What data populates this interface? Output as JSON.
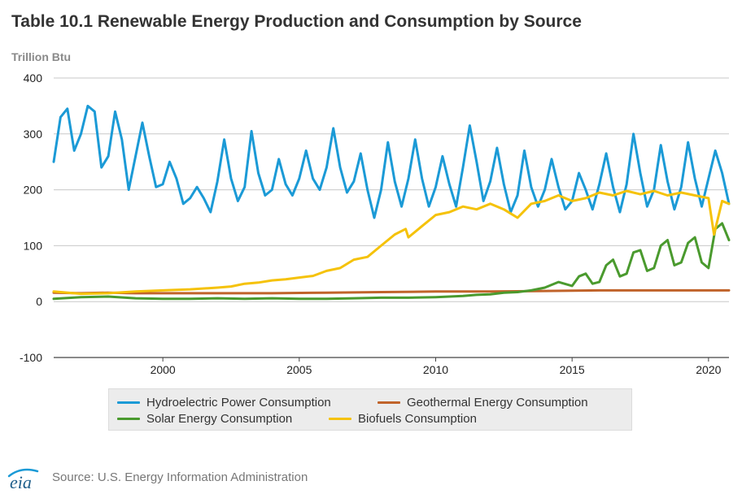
{
  "header": {
    "title": "Table 10.1 Renewable Energy Production and Consumption by Source",
    "units": "Trillion Btu"
  },
  "footer": {
    "logo_text": "eia",
    "source": "Source: U.S. Energy Information Administration"
  },
  "chart_data": {
    "type": "line",
    "title": "Table 10.1 Renewable Energy Production and Consumption by Source",
    "xlabel": "",
    "ylabel": "Trillion Btu",
    "xlim": [
      1996.0,
      2020.75
    ],
    "ylim": [
      -100,
      400
    ],
    "x_ticks": [
      2000,
      2005,
      2010,
      2015,
      2020
    ],
    "y_ticks": [
      -100,
      0,
      100,
      200,
      300,
      400
    ],
    "grid": "horizontal",
    "legend_position": "bottom",
    "series": [
      {
        "name": "Hydroelectric Power Consumption",
        "color": "#1b9ad6",
        "x": [
          1996.0,
          1996.25,
          1996.5,
          1996.75,
          1997.0,
          1997.25,
          1997.5,
          1997.75,
          1998.0,
          1998.25,
          1998.5,
          1998.75,
          1999.0,
          1999.25,
          1999.5,
          1999.75,
          2000.0,
          2000.25,
          2000.5,
          2000.75,
          2001.0,
          2001.25,
          2001.5,
          2001.75,
          2002.0,
          2002.25,
          2002.5,
          2002.75,
          2003.0,
          2003.25,
          2003.5,
          2003.75,
          2004.0,
          2004.25,
          2004.5,
          2004.75,
          2005.0,
          2005.25,
          2005.5,
          2005.75,
          2006.0,
          2006.25,
          2006.5,
          2006.75,
          2007.0,
          2007.25,
          2007.5,
          2007.75,
          2008.0,
          2008.25,
          2008.5,
          2008.75,
          2009.0,
          2009.25,
          2009.5,
          2009.75,
          2010.0,
          2010.25,
          2010.5,
          2010.75,
          2011.0,
          2011.25,
          2011.5,
          2011.75,
          2012.0,
          2012.25,
          2012.5,
          2012.75,
          2013.0,
          2013.25,
          2013.5,
          2013.75,
          2014.0,
          2014.25,
          2014.5,
          2014.75,
          2015.0,
          2015.25,
          2015.5,
          2015.75,
          2016.0,
          2016.25,
          2016.5,
          2016.75,
          2017.0,
          2017.25,
          2017.5,
          2017.75,
          2018.0,
          2018.25,
          2018.5,
          2018.75,
          2019.0,
          2019.25,
          2019.5,
          2019.75,
          2020.0,
          2020.25,
          2020.5,
          2020.75
        ],
        "values": [
          250,
          330,
          345,
          270,
          300,
          350,
          340,
          240,
          260,
          340,
          290,
          200,
          260,
          320,
          260,
          205,
          210,
          250,
          220,
          175,
          185,
          205,
          185,
          160,
          215,
          290,
          220,
          180,
          205,
          305,
          230,
          190,
          200,
          255,
          210,
          190,
          220,
          270,
          220,
          200,
          240,
          310,
          240,
          195,
          215,
          265,
          200,
          150,
          200,
          285,
          215,
          170,
          220,
          290,
          220,
          170,
          205,
          260,
          210,
          170,
          240,
          315,
          250,
          180,
          215,
          275,
          210,
          160,
          190,
          270,
          205,
          170,
          200,
          255,
          205,
          165,
          180,
          230,
          200,
          165,
          210,
          265,
          205,
          160,
          210,
          300,
          230,
          170,
          200,
          280,
          215,
          165,
          205,
          285,
          220,
          170,
          220,
          270,
          230,
          175
        ]
      },
      {
        "name": "Geothermal Energy Consumption",
        "color": "#c0632a",
        "x": [
          1996.0,
          1997.0,
          1998.0,
          1999.0,
          2000.0,
          2002.0,
          2004.0,
          2006.0,
          2008.0,
          2010.0,
          2012.0,
          2014.0,
          2016.0,
          2018.0,
          2020.0,
          2020.75
        ],
        "values": [
          16,
          15,
          16,
          15,
          15,
          15,
          15,
          16,
          17,
          18,
          18,
          19,
          20,
          20,
          20,
          20
        ]
      },
      {
        "name": "Solar Energy Consumption",
        "color": "#4a9a2e",
        "x": [
          1996.0,
          1997.0,
          1998.0,
          1999.0,
          2000.0,
          2001.0,
          2002.0,
          2003.0,
          2004.0,
          2005.0,
          2006.0,
          2007.0,
          2008.0,
          2009.0,
          2010.0,
          2011.0,
          2011.5,
          2012.0,
          2012.5,
          2013.0,
          2013.5,
          2014.0,
          2014.5,
          2015.0,
          2015.25,
          2015.5,
          2015.75,
          2016.0,
          2016.25,
          2016.5,
          2016.75,
          2017.0,
          2017.25,
          2017.5,
          2017.75,
          2018.0,
          2018.25,
          2018.5,
          2018.75,
          2019.0,
          2019.25,
          2019.5,
          2019.75,
          2020.0,
          2020.25,
          2020.5,
          2020.75
        ],
        "values": [
          5,
          8,
          9,
          6,
          5,
          5,
          6,
          5,
          6,
          5,
          5,
          6,
          7,
          7,
          8,
          10,
          12,
          13,
          16,
          17,
          20,
          25,
          35,
          28,
          45,
          50,
          32,
          35,
          65,
          75,
          45,
          50,
          88,
          92,
          55,
          60,
          100,
          110,
          65,
          70,
          105,
          115,
          70,
          60,
          130,
          140,
          110
        ]
      },
      {
        "name": "Biofuels Consumption",
        "color": "#f5c20a",
        "x": [
          1996.0,
          1997.0,
          1998.0,
          1999.0,
          2000.0,
          2001.0,
          2002.0,
          2002.5,
          2003.0,
          2003.5,
          2004.0,
          2004.5,
          2005.0,
          2005.5,
          2006.0,
          2006.5,
          2007.0,
          2007.5,
          2008.0,
          2008.5,
          2008.9,
          2009.0,
          2009.5,
          2010.0,
          2010.5,
          2011.0,
          2011.5,
          2012.0,
          2012.5,
          2013.0,
          2013.5,
          2014.0,
          2014.5,
          2015.0,
          2015.5,
          2016.0,
          2016.5,
          2017.0,
          2017.5,
          2018.0,
          2018.5,
          2019.0,
          2019.5,
          2020.0,
          2020.2,
          2020.35,
          2020.5,
          2020.75
        ],
        "values": [
          18,
          14,
          15,
          18,
          20,
          22,
          25,
          27,
          32,
          34,
          38,
          40,
          43,
          46,
          55,
          60,
          75,
          80,
          100,
          120,
          130,
          115,
          135,
          155,
          160,
          170,
          165,
          175,
          165,
          150,
          175,
          180,
          190,
          180,
          185,
          195,
          190,
          198,
          192,
          198,
          190,
          195,
          190,
          185,
          120,
          150,
          180,
          175
        ]
      }
    ]
  }
}
